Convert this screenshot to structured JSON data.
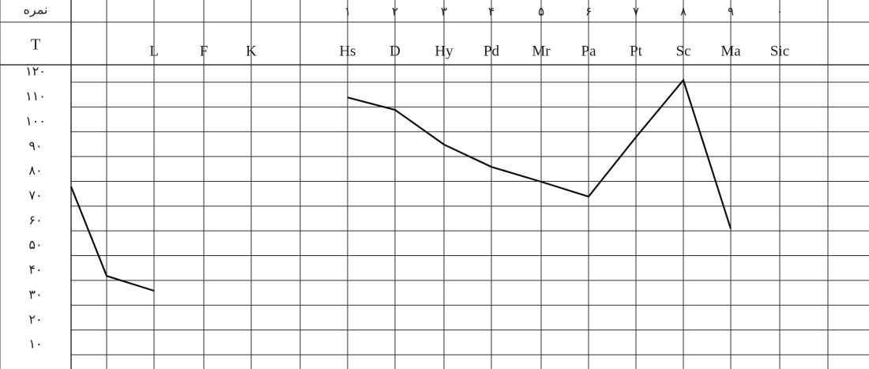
{
  "chart_data": {
    "type": "line",
    "ylabel_top": "نمره",
    "ylabel": "T",
    "scale_numbers": [
      "۱",
      "۲",
      "۳",
      "۴",
      "۵",
      "۶",
      "۷",
      "۸",
      "۹",
      "۰"
    ],
    "categories": [
      null,
      null,
      "L",
      "F",
      "K",
      null,
      "Hs",
      "D",
      "Hy",
      "Pd",
      "Mr",
      "Pa",
      "Pt",
      "Sc",
      "Ma",
      "Sic",
      null
    ],
    "series": [
      {
        "name": null,
        "color": "#111111",
        "values": [
          74,
          38,
          32,
          null,
          null,
          null,
          110,
          105,
          91,
          82,
          76,
          70,
          94,
          117,
          57,
          null,
          null
        ]
      }
    ],
    "ylim": [
      10,
      120
    ],
    "yticks": [
      {
        "value": 120,
        "label": "۱۲۰"
      },
      {
        "value": 110,
        "label": "۱۱۰"
      },
      {
        "value": 100,
        "label": "۱۰۰"
      },
      {
        "value": 90,
        "label": "۹۰"
      },
      {
        "value": 80,
        "label": "۸۰"
      },
      {
        "value": 70,
        "label": "۷۰"
      },
      {
        "value": 60,
        "label": "۶۰"
      },
      {
        "value": 50,
        "label": "۵۰"
      },
      {
        "value": 40,
        "label": "۴۰"
      },
      {
        "value": 30,
        "label": "۳۰"
      },
      {
        "value": 20,
        "label": "۲۰"
      },
      {
        "value": 10,
        "label": "۱۰"
      }
    ],
    "grid": true
  }
}
